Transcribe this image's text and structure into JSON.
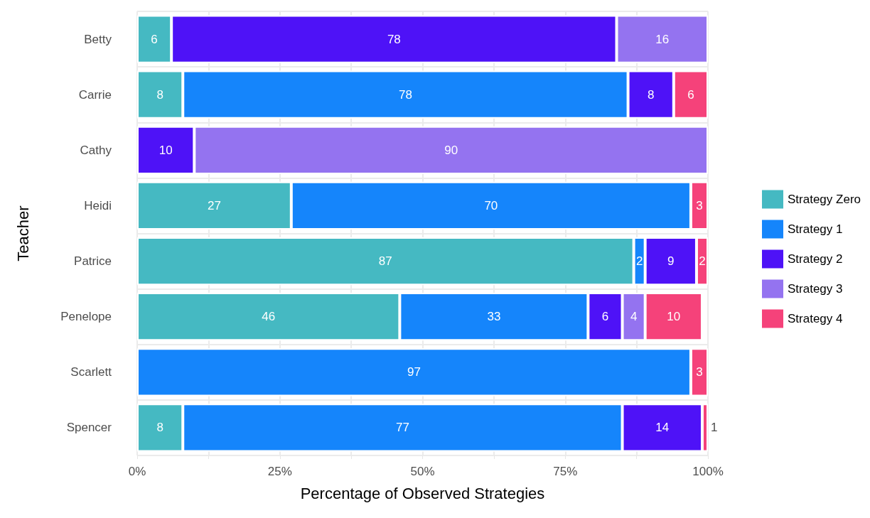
{
  "chart_data": {
    "type": "bar",
    "orientation": "horizontal",
    "stacked": true,
    "xlabel": "Percentage of Observed Strategies",
    "ylabel": "Teacher",
    "categories": [
      "Betty",
      "Carrie",
      "Cathy",
      "Heidi",
      "Patrice",
      "Penelope",
      "Scarlett",
      "Spencer"
    ],
    "series": [
      {
        "name": "Strategy Zero",
        "color": "#45b9c2",
        "values": [
          6,
          8,
          null,
          27,
          87,
          46,
          null,
          8
        ]
      },
      {
        "name": "Strategy 1",
        "color": "#1585fb",
        "values": [
          null,
          78,
          null,
          70,
          2,
          33,
          97,
          77
        ]
      },
      {
        "name": "Strategy 2",
        "color": "#4e12f7",
        "values": [
          78,
          8,
          10,
          null,
          9,
          6,
          null,
          14
        ]
      },
      {
        "name": "Strategy 3",
        "color": "#9473f0",
        "values": [
          16,
          null,
          90,
          null,
          null,
          4,
          null,
          null
        ]
      },
      {
        "name": "Strategy 4",
        "color": "#f5427a",
        "values": [
          null,
          6,
          null,
          3,
          2,
          10,
          3,
          1
        ]
      }
    ],
    "xlim": [
      0,
      100
    ],
    "xticks": [
      {
        "value": 0,
        "label": "0%"
      },
      {
        "value": 12.5,
        "label": null
      },
      {
        "value": 25,
        "label": "25%"
      },
      {
        "value": 37.5,
        "label": null
      },
      {
        "value": 50,
        "label": "50%"
      },
      {
        "value": 62.5,
        "label": null
      },
      {
        "value": 75,
        "label": "75%"
      },
      {
        "value": 87.5,
        "label": null
      },
      {
        "value": 100,
        "label": "100%"
      }
    ],
    "data_labels": true,
    "grid": true,
    "legend": "right"
  }
}
